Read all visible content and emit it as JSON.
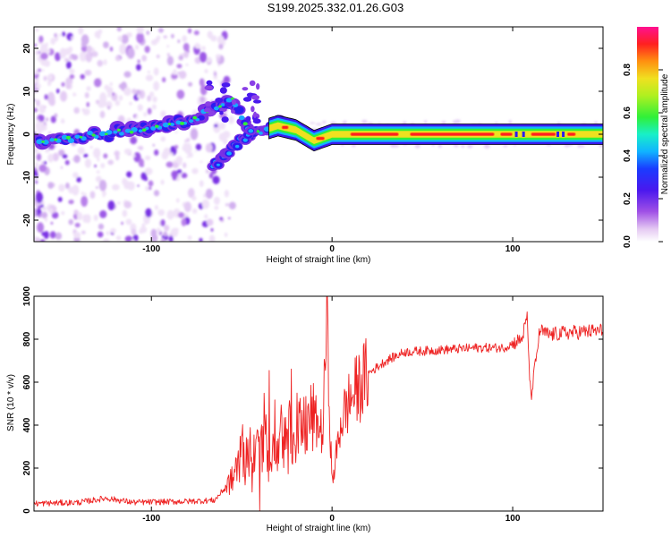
{
  "title": "S199.2025.332.01.26.G03",
  "chart_data": [
    {
      "type": "heatmap",
      "name": "spectrogram",
      "xlabel": "Height of straight line (km)",
      "ylabel": "Frequency (Hz)",
      "xlim": [
        -165,
        150
      ],
      "ylim": [
        -25,
        25
      ],
      "xticks": [
        -100,
        0,
        100
      ],
      "yticks": [
        -20,
        -10,
        0,
        10,
        20
      ],
      "colorbar": {
        "label": "Normalized spectral amplitude",
        "range": [
          0.0,
          1.0
        ],
        "ticks": [
          0.0,
          0.2,
          0.4,
          0.6,
          0.8
        ],
        "colormap": "rainbow (white-violet-blue-cyan-green-yellow-orange-red-magenta)"
      },
      "ridge": [
        {
          "x": -160,
          "y": -1.5
        },
        {
          "x": -140,
          "y": -0.5
        },
        {
          "x": -120,
          "y": 0.5
        },
        {
          "x": -100,
          "y": 1.5
        },
        {
          "x": -80,
          "y": 3.0
        },
        {
          "x": -65,
          "y": 6.0
        },
        {
          "x": -55,
          "y": 8.0
        },
        {
          "x": -45,
          "y": 0.0
        },
        {
          "x": -30,
          "y": 2.0
        },
        {
          "x": -20,
          "y": 1.0
        },
        {
          "x": -10,
          "y": -1.5
        },
        {
          "x": 0,
          "y": 0.0
        },
        {
          "x": 50,
          "y": 0.0
        },
        {
          "x": 100,
          "y": 0.0
        },
        {
          "x": 150,
          "y": 0.0
        }
      ],
      "branch": [
        {
          "x": -65,
          "y": -7.0
        },
        {
          "x": -55,
          "y": -3.0
        },
        {
          "x": -45,
          "y": 0.0
        }
      ]
    },
    {
      "type": "line",
      "name": "snr",
      "xlabel": "Height of straight line (km)",
      "ylabel": "SNR (10 * v/v)",
      "xlim": [
        -165,
        150
      ],
      "ylim": [
        0,
        1000
      ],
      "xticks": [
        -100,
        0,
        100
      ],
      "yticks": [
        0,
        200,
        400,
        600,
        800,
        1000
      ],
      "series": [
        {
          "name": "SNR",
          "color": "#ee2222",
          "x": [
            -165,
            -140,
            -125,
            -110,
            -80,
            -65,
            -55,
            -50,
            -40,
            -35,
            -30,
            -20,
            -15,
            -10,
            -5,
            -3,
            0,
            5,
            10,
            20,
            30,
            40,
            60,
            80,
            95,
            100,
            105,
            108,
            110,
            115,
            120,
            130,
            150
          ],
          "y": [
            35,
            40,
            60,
            40,
            45,
            50,
            150,
            260,
            330,
            310,
            300,
            380,
            400,
            430,
            360,
            940,
            120,
            420,
            520,
            640,
            700,
            740,
            750,
            760,
            760,
            780,
            800,
            900,
            520,
            840,
            820,
            830,
            840
          ]
        }
      ]
    }
  ]
}
